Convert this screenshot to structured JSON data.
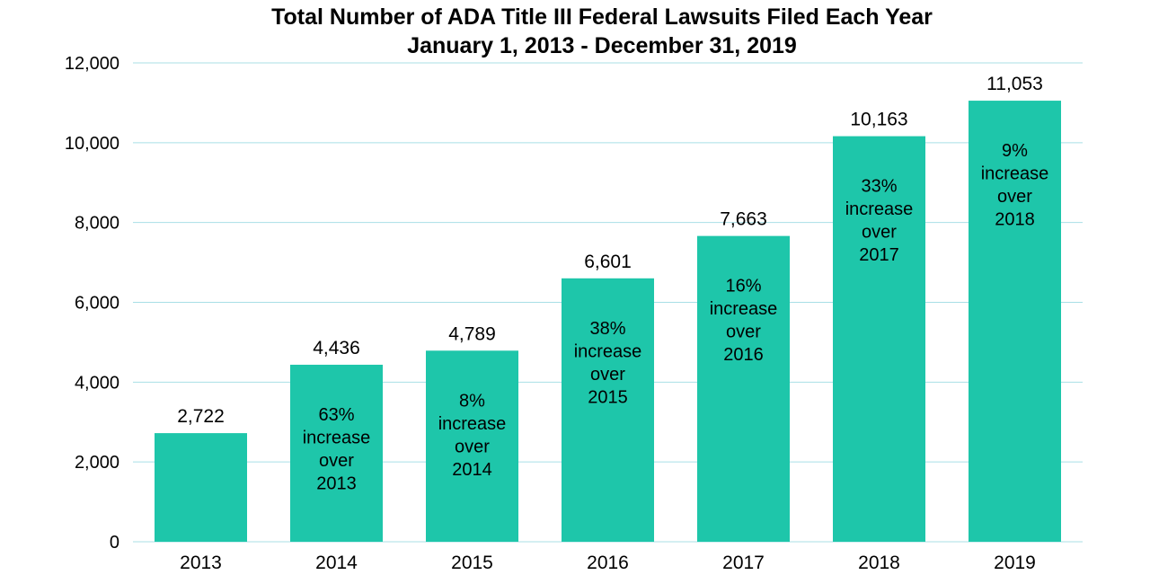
{
  "chart_data": {
    "type": "bar",
    "title": "Total Number of ADA Title III Federal Lawsuits Filed Each Year",
    "subtitle": "January 1, 2013 - December 31, 2019",
    "categories": [
      "2013",
      "2014",
      "2015",
      "2016",
      "2017",
      "2018",
      "2019"
    ],
    "values": [
      2722,
      4436,
      4789,
      6601,
      7663,
      10163,
      11053
    ],
    "value_labels": [
      "2,722",
      "4,436",
      "4,789",
      "6,601",
      "7,663",
      "10,163",
      "11,053"
    ],
    "annotations": [
      [],
      [
        "63%",
        "increase",
        "over",
        "2013"
      ],
      [
        "8%",
        "increase",
        "over",
        "2014"
      ],
      [
        "38%",
        "increase",
        "over",
        "2015"
      ],
      [
        "16%",
        "increase",
        "over",
        "2016"
      ],
      [
        "33%",
        "increase",
        "over",
        "2017"
      ],
      [
        "9%",
        "increase",
        "over",
        "2018"
      ]
    ],
    "y_ticks": [
      0,
      2000,
      4000,
      6000,
      8000,
      10000,
      12000
    ],
    "y_tick_labels": [
      "0",
      "2,000",
      "4,000",
      "6,000",
      "8,000",
      "10,000",
      "12,000"
    ],
    "ylim": [
      0,
      12000
    ],
    "xlabel": "",
    "ylabel": "",
    "grid": true,
    "legend": "none",
    "colors": {
      "bar": "#1ec6aa",
      "grid": "#a8dfe6",
      "text": "#000000"
    }
  }
}
